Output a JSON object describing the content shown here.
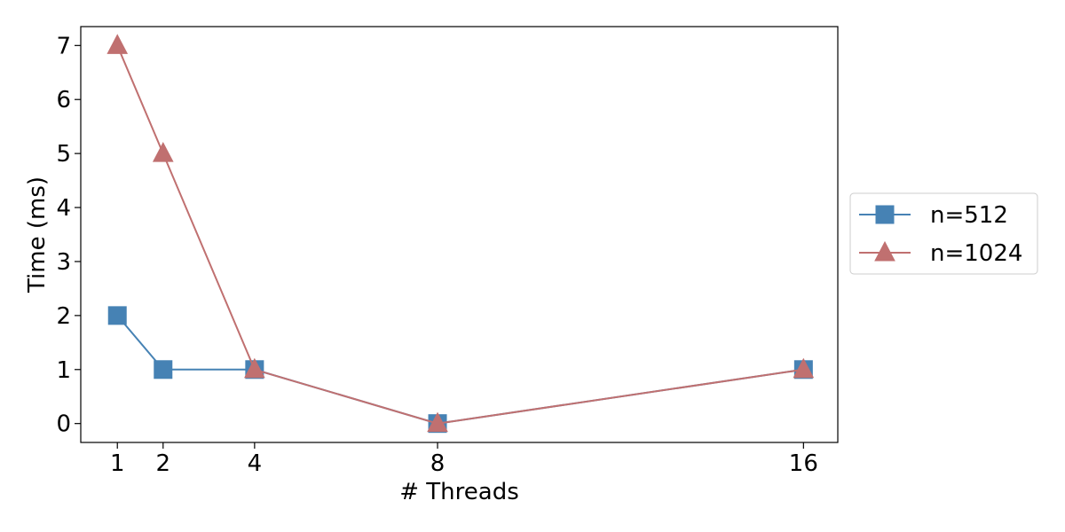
{
  "chart_data": {
    "type": "line",
    "title": "",
    "xlabel": "# Threads",
    "ylabel": "Time (ms)",
    "x": [
      1,
      2,
      4,
      8,
      16
    ],
    "xticks": [
      1,
      2,
      4,
      8,
      16
    ],
    "yticks": [
      0,
      1,
      2,
      3,
      4,
      5,
      6,
      7
    ],
    "xlim": [
      0.2,
      16.75
    ],
    "ylim": [
      -0.35,
      7.35
    ],
    "grid": false,
    "legend_position": "outside-right",
    "series": [
      {
        "name": "n=512",
        "values": [
          2,
          1,
          1,
          0,
          1
        ],
        "color": "#4682b4",
        "marker": "square"
      },
      {
        "name": "n=1024",
        "values": [
          7,
          5,
          1,
          0,
          1
        ],
        "color": "#c07070",
        "marker": "triangle"
      }
    ]
  }
}
